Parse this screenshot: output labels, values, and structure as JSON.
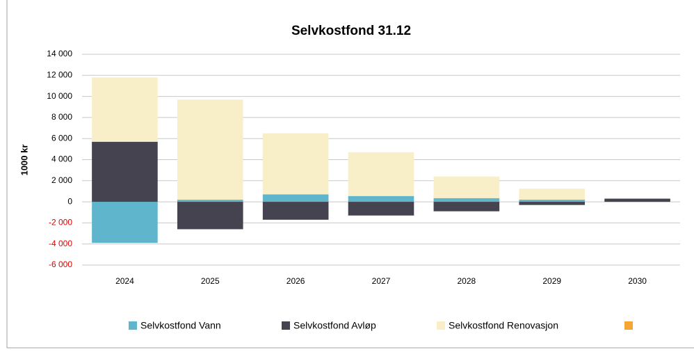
{
  "chart_data": {
    "type": "stacked_bar",
    "title": "Selvkostfond 31.12",
    "y_label": "1000 kr",
    "categories": [
      "2024",
      "2025",
      "2026",
      "2027",
      "2028",
      "2029",
      "2030"
    ],
    "series": [
      {
        "name": "Selvkostfond Vann",
        "color": "#5fb6cc",
        "values": [
          -3900,
          200,
          700,
          550,
          350,
          200,
          0
        ]
      },
      {
        "name": "Selvkostfond Avløp",
        "color": "#45434f",
        "values": [
          5700,
          -2600,
          -1700,
          -1300,
          -900,
          -300,
          300
        ]
      },
      {
        "name": "Selvkostfond Renovasjon",
        "color": "#f8efc8",
        "values": [
          6100,
          9500,
          5800,
          4150,
          2050,
          1050,
          0
        ]
      },
      {
        "color": "#f7a533",
        "values": [
          null,
          null,
          null,
          null,
          null,
          null,
          null
        ]
      }
    ],
    "ylim": [
      -6000,
      14000
    ],
    "yticks": [
      {
        "value": -6000,
        "label": "-6 000"
      },
      {
        "value": -4000,
        "label": "-4 000"
      },
      {
        "value": -2000,
        "label": "-2 000"
      },
      0,
      {
        "value": 2000,
        "label": "2 000"
      },
      {
        "value": 4000,
        "label": "4 000"
      },
      {
        "value": 6000,
        "label": "6 000"
      },
      {
        "value": 8000,
        "label": "8 000"
      },
      {
        "value": 10000,
        "label": "10 000"
      },
      {
        "value": 12000,
        "label": "12 000"
      },
      {
        "value": 14000,
        "label": "14 000"
      }
    ],
    "negative_tick_color": "#e00000",
    "grid": true,
    "legend": "bottom"
  }
}
